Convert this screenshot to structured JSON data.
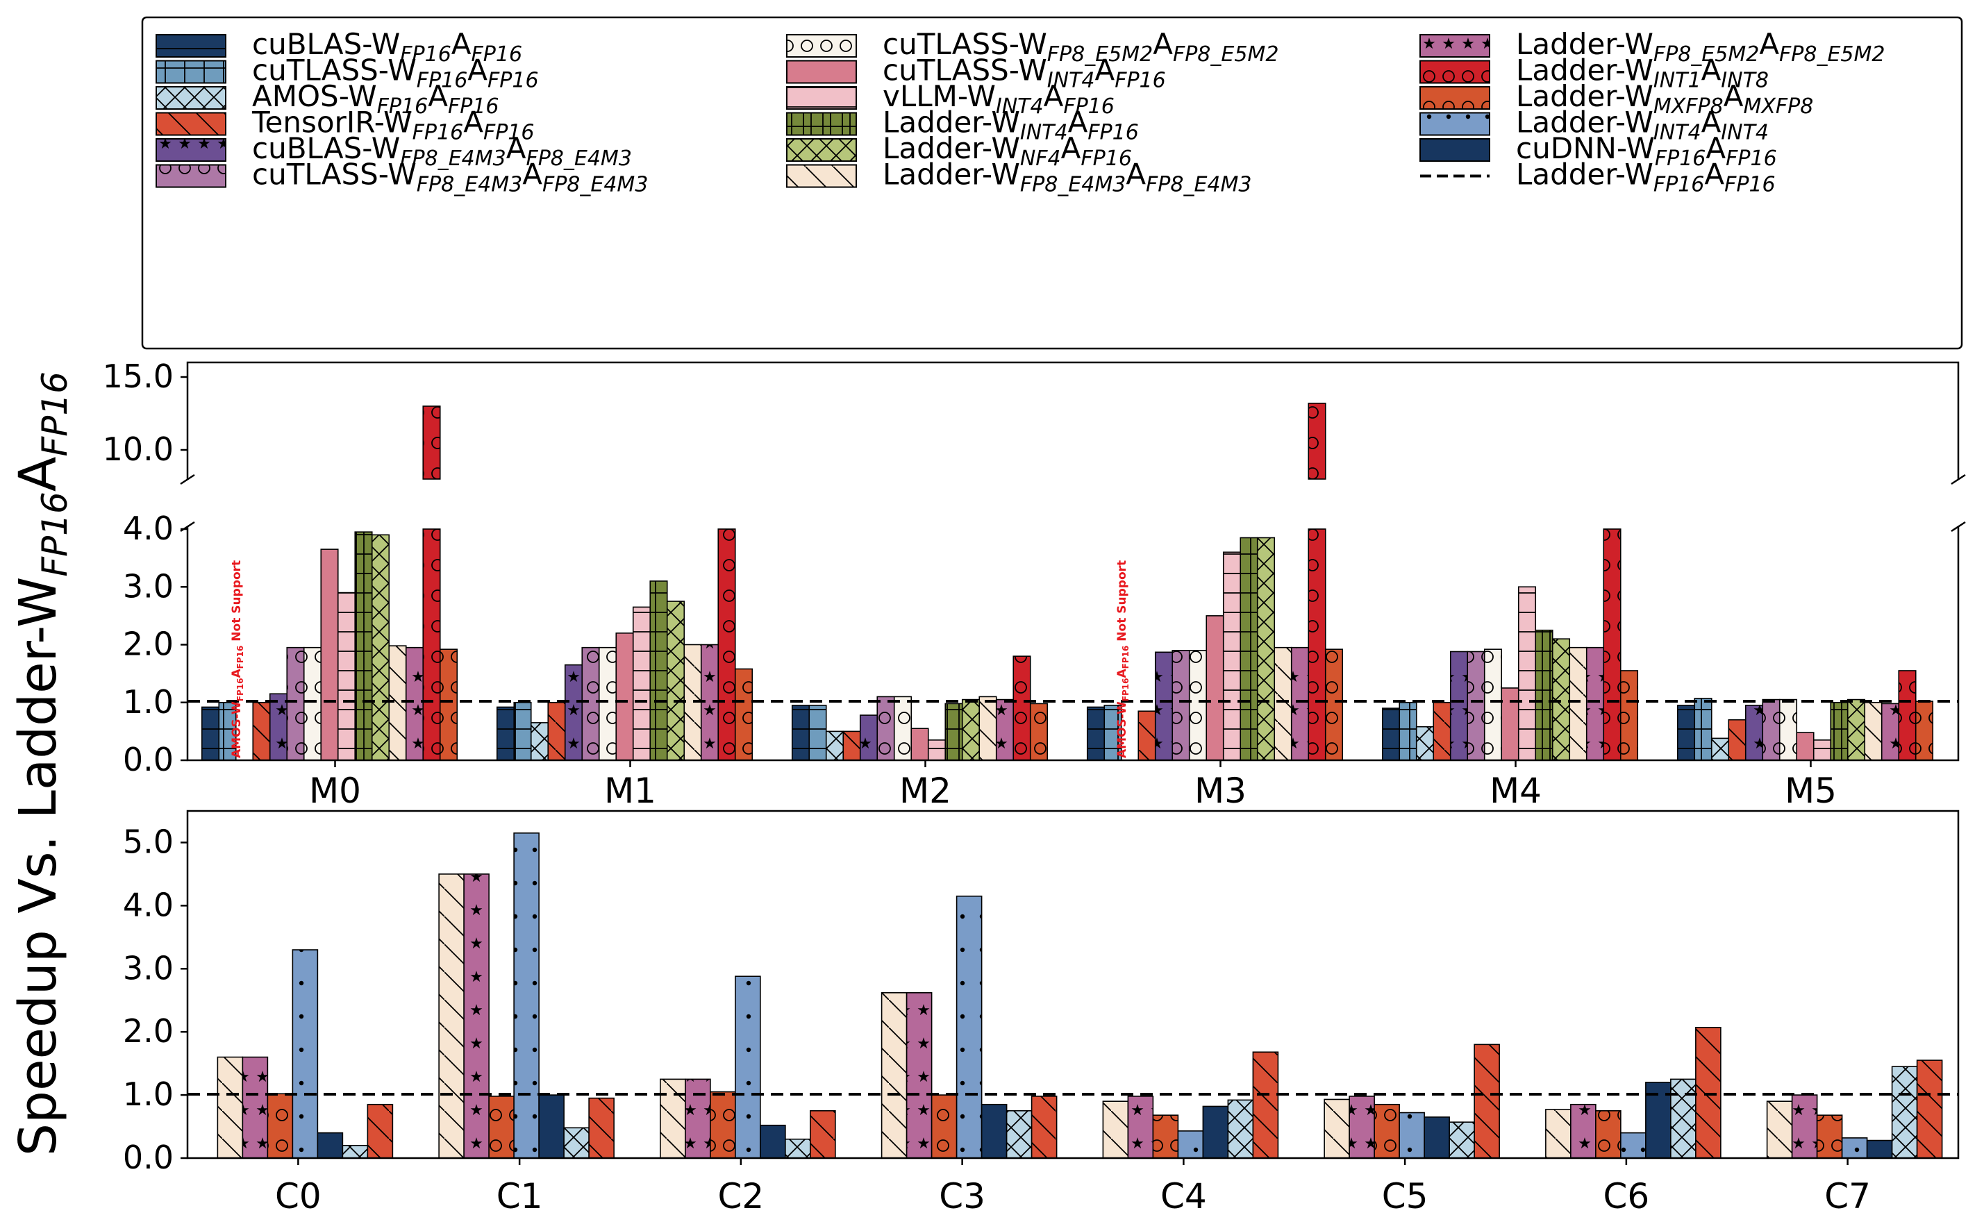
{
  "figure": {
    "ylabel_main": "Speedup Vs. Ladder-W",
    "ylabel_sub": "FP16",
    "ylabel_tail": "A",
    "ylabel_sub2": "FP16"
  },
  "legend": [
    {
      "base": "cuBLAS-W",
      "s1": "FP16",
      "mid": "A",
      "s2": "FP16",
      "color": "#1a3a63",
      "pattern": "hline"
    },
    {
      "base": "cuTLASS-W",
      "s1": "FP16",
      "mid": "A",
      "s2": "FP16",
      "color": "#6f9cbd",
      "pattern": "grid"
    },
    {
      "base": "AMOS-W",
      "s1": "FP16",
      "mid": "A",
      "s2": "FP16",
      "color": "#bcd7e5",
      "pattern": "cross"
    },
    {
      "base": "TensorIR-W",
      "s1": "FP16",
      "mid": "A",
      "s2": "FP16",
      "color": "#da4f35",
      "pattern": "back"
    },
    {
      "base": "cuBLAS-W",
      "s1": "FP8_E4M3",
      "mid": "A",
      "s2": "FP8_E4M3",
      "color": "#6c4f93",
      "pattern": "stars"
    },
    {
      "base": "cuTLASS-W",
      "s1": "FP8_E4M3",
      "mid": "A",
      "s2": "FP8_E4M3",
      "color": "#ad78a6",
      "pattern": "circ"
    },
    {
      "base": "cuTLASS-W",
      "s1": "FP8_E5M2",
      "mid": "A",
      "s2": "FP8_E5M2",
      "color": "#f8f4ec",
      "pattern": "circ"
    },
    {
      "base": "cuTLASS-W",
      "s1": "INT4",
      "mid": "A",
      "s2": "FP16",
      "color": "#d77c8d",
      "pattern": "none"
    },
    {
      "base": "vLLM-W",
      "s1": "INT4",
      "mid": "A",
      "s2": "FP16",
      "color": "#f1c0c8",
      "pattern": "hline"
    },
    {
      "base": "Ladder-W",
      "s1": "INT4",
      "mid": "A",
      "s2": "FP16",
      "color": "#76893b",
      "pattern": "vgrid"
    },
    {
      "base": "Ladder-W",
      "s1": "NF4",
      "mid": "A",
      "s2": "FP16",
      "color": "#b6c67a",
      "pattern": "cross"
    },
    {
      "base": "Ladder-W",
      "s1": "FP8_E4M3",
      "mid": "A",
      "s2": "FP8_E4M3",
      "color": "#f7e5d2",
      "pattern": "back"
    },
    {
      "base": "Ladder-W",
      "s1": "FP8_E5M2",
      "mid": "A",
      "s2": "FP8_E5M2",
      "color": "#b5699a",
      "pattern": "stars"
    },
    {
      "base": "Ladder-W",
      "s1": "INT1",
      "mid": "A",
      "s2": "INT8",
      "color": "#cf2129",
      "pattern": "circ"
    },
    {
      "base": "Ladder-W",
      "s1": "MXFP8",
      "mid": "A",
      "s2": "MXFP8",
      "color": "#d4552e",
      "pattern": "circ"
    },
    {
      "base": "Ladder-W",
      "s1": "INT4",
      "mid": "A",
      "s2": "INT4",
      "color": "#7a9cc8",
      "pattern": "dots"
    },
    {
      "base": "cuDNN-W",
      "s1": "FP16",
      "mid": "A",
      "s2": "FP16",
      "color": "#17365f",
      "pattern": "none"
    },
    {
      "base": "Ladder-W",
      "s1": "FP16",
      "mid": "A",
      "s2": "FP16",
      "color": "#000000",
      "pattern": "dashed"
    }
  ],
  "annotation": {
    "text_a": "AMOS-W",
    "sub_a": "FP16",
    "text_b": "A",
    "sub_b": "FP16",
    "text_c": " Not Support"
  },
  "chart_data": [
    {
      "type": "bar",
      "panel": "matmul",
      "categories": [
        "M0",
        "M1",
        "M2",
        "M3",
        "M4",
        "M5"
      ],
      "ylim_lower": [
        0,
        4
      ],
      "ylim_upper": [
        8,
        16
      ],
      "yticks_lower": [
        "0.0",
        "1.0",
        "2.0",
        "3.0",
        "4.0"
      ],
      "yticks_upper": [
        "10.0",
        "15.0"
      ],
      "baseline": 1.0,
      "series": [
        {
          "legend_index": 0,
          "values": [
            0.92,
            0.92,
            0.95,
            0.92,
            0.9,
            0.95
          ]
        },
        {
          "legend_index": 1,
          "values": [
            1.0,
            1.0,
            0.95,
            0.95,
            1.0,
            1.07
          ]
        },
        {
          "legend_index": 2,
          "values": [
            null,
            0.65,
            0.5,
            null,
            0.58,
            0.38
          ]
        },
        {
          "legend_index": 3,
          "values": [
            1.0,
            1.0,
            0.5,
            0.85,
            1.0,
            0.7
          ]
        },
        {
          "legend_index": 4,
          "values": [
            1.15,
            1.65,
            0.78,
            1.87,
            1.88,
            0.95
          ]
        },
        {
          "legend_index": 5,
          "values": [
            1.95,
            1.95,
            1.1,
            1.9,
            1.88,
            1.05
          ]
        },
        {
          "legend_index": 6,
          "values": [
            1.95,
            1.95,
            1.1,
            1.9,
            1.92,
            1.05
          ]
        },
        {
          "legend_index": 7,
          "values": [
            3.65,
            2.2,
            0.55,
            2.5,
            1.25,
            0.48
          ]
        },
        {
          "legend_index": 8,
          "values": [
            2.9,
            2.65,
            0.35,
            3.6,
            3.0,
            0.35
          ]
        },
        {
          "legend_index": 9,
          "values": [
            3.95,
            3.1,
            0.98,
            3.85,
            2.25,
            1.0
          ]
        },
        {
          "legend_index": 10,
          "values": [
            3.9,
            2.75,
            1.05,
            3.85,
            2.1,
            1.05
          ]
        },
        {
          "legend_index": 11,
          "values": [
            1.98,
            2.0,
            1.1,
            1.95,
            1.95,
            1.0
          ]
        },
        {
          "legend_index": 12,
          "values": [
            1.95,
            2.0,
            1.05,
            1.95,
            1.95,
            0.98
          ]
        },
        {
          "legend_index": 13,
          "values": [
            13.0,
            4.2,
            1.8,
            13.2,
            4.1,
            1.55
          ]
        },
        {
          "legend_index": 14,
          "values": [
            1.92,
            1.58,
            0.98,
            1.92,
            1.55,
            1.02
          ]
        }
      ]
    },
    {
      "type": "bar",
      "panel": "conv",
      "categories": [
        "C0",
        "C1",
        "C2",
        "C3",
        "C4",
        "C5",
        "C6",
        "C7"
      ],
      "ylim": [
        0,
        5.5
      ],
      "yticks": [
        "0.0",
        "1.0",
        "2.0",
        "3.0",
        "4.0",
        "5.0"
      ],
      "baseline": 1.0,
      "series": [
        {
          "legend_index": 11,
          "values": [
            1.6,
            4.5,
            1.25,
            2.62,
            0.9,
            0.93,
            0.77,
            0.9
          ]
        },
        {
          "legend_index": 12,
          "values": [
            1.6,
            4.5,
            1.25,
            2.62,
            0.98,
            0.98,
            0.85,
            1.0
          ]
        },
        {
          "legend_index": 14,
          "values": [
            1.02,
            0.98,
            1.05,
            1.0,
            0.68,
            0.85,
            0.75,
            0.68
          ]
        },
        {
          "legend_index": 15,
          "values": [
            3.3,
            5.15,
            2.88,
            4.15,
            0.43,
            0.72,
            0.4,
            0.32
          ]
        },
        {
          "legend_index": 16,
          "values": [
            0.4,
            1.0,
            0.52,
            0.85,
            0.82,
            0.65,
            1.2,
            0.28
          ]
        },
        {
          "legend_index": 2,
          "values": [
            0.2,
            0.48,
            0.3,
            0.75,
            0.92,
            0.57,
            1.25,
            1.45
          ]
        },
        {
          "legend_index": 3,
          "values": [
            0.85,
            0.95,
            0.75,
            0.98,
            1.68,
            1.8,
            2.07,
            1.55
          ]
        }
      ]
    }
  ]
}
